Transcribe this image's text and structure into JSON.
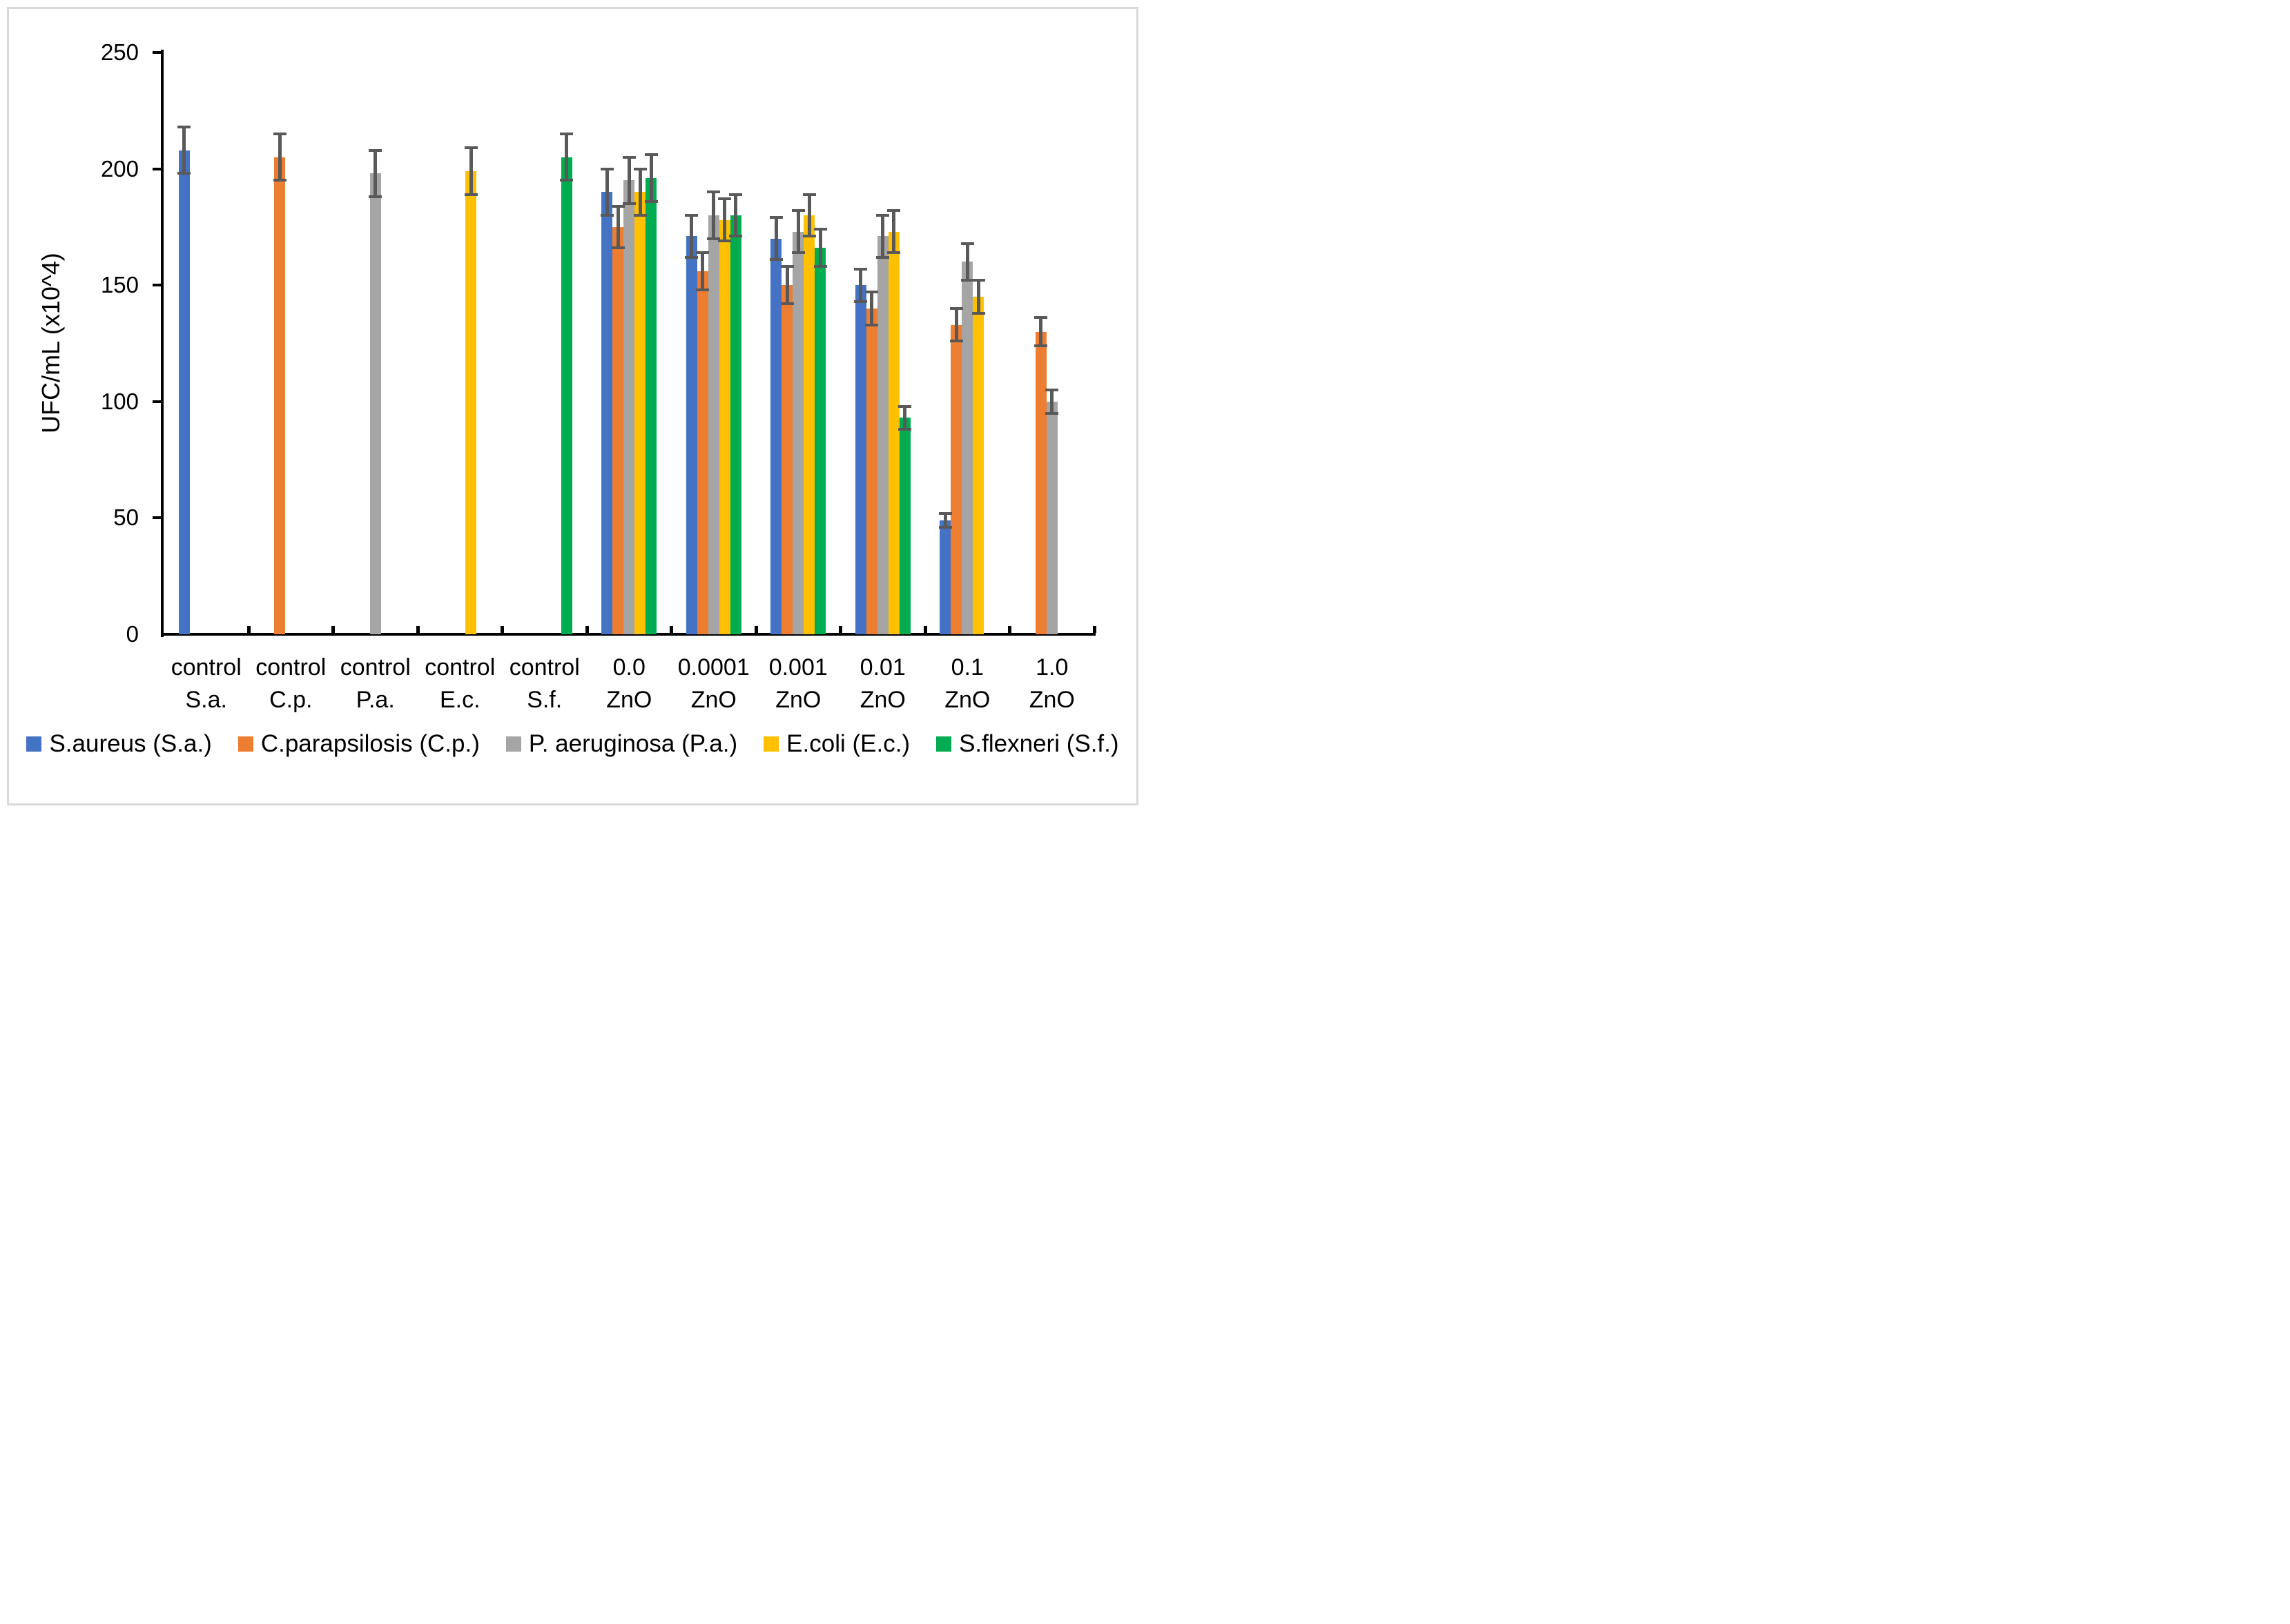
{
  "figure": {
    "background_color": "#FFFFFF",
    "border_color": "#D9D9D9"
  },
  "chart_data": {
    "type": "bar",
    "title": "",
    "y_axis_title": "UFC/mL (x10^4)",
    "ylim": [
      0,
      250
    ],
    "y_tick_step": 50,
    "y_tick_labels": [
      "0",
      "50",
      "100",
      "150",
      "200",
      "250"
    ],
    "grid": "off",
    "legend_position": "bottom",
    "axis_color": "#000000",
    "error_bar_color": "#595959",
    "categories": [
      {
        "label_lines": [
          "control",
          "S.a."
        ]
      },
      {
        "label_lines": [
          "control",
          "C.p."
        ]
      },
      {
        "label_lines": [
          "control",
          "P.a."
        ]
      },
      {
        "label_lines": [
          "control",
          "E.c."
        ]
      },
      {
        "label_lines": [
          "control",
          "S.f."
        ]
      },
      {
        "label_lines": [
          "0.0 ZnO"
        ]
      },
      {
        "label_lines": [
          "0.0001",
          "ZnO"
        ]
      },
      {
        "label_lines": [
          "0.001",
          "ZnO"
        ]
      },
      {
        "label_lines": [
          "0.01",
          "ZnO"
        ]
      },
      {
        "label_lines": [
          "0.1 ZnO"
        ]
      },
      {
        "label_lines": [
          "1.0 ZnO"
        ]
      }
    ],
    "series": [
      {
        "name": "S.aureus (S.a.)",
        "color": "#4472C4",
        "values": [
          208,
          null,
          null,
          null,
          null,
          190,
          171,
          170,
          150,
          49,
          null
        ],
        "errors": [
          10,
          null,
          null,
          null,
          null,
          10,
          9,
          9,
          7,
          3,
          null
        ]
      },
      {
        "name": "C.parapsilosis (C.p.)",
        "color": "#ED7D31",
        "values": [
          null,
          205,
          null,
          null,
          null,
          175,
          156,
          150,
          140,
          133,
          130
        ],
        "errors": [
          null,
          10,
          null,
          null,
          null,
          9,
          8,
          8,
          7,
          7,
          6
        ]
      },
      {
        "name": "P. aeruginosa (P.a.)",
        "color": "#A5A5A5",
        "values": [
          null,
          null,
          198,
          null,
          null,
          195,
          180,
          173,
          171,
          160,
          100
        ],
        "errors": [
          null,
          null,
          10,
          null,
          null,
          10,
          10,
          9,
          9,
          8,
          5
        ]
      },
      {
        "name": "E.coli (E.c.)",
        "color": "#FFC000",
        "values": [
          null,
          null,
          null,
          199,
          null,
          190,
          178,
          180,
          173,
          145,
          null
        ],
        "errors": [
          null,
          null,
          null,
          10,
          null,
          10,
          9,
          9,
          9,
          7,
          null
        ]
      },
      {
        "name": "S.flexneri (S.f.)",
        "color": "#00AC50",
        "values": [
          null,
          null,
          null,
          null,
          205,
          196,
          180,
          166,
          93,
          null,
          null
        ],
        "errors": [
          null,
          null,
          null,
          null,
          10,
          10,
          9,
          8,
          5,
          null,
          null
        ]
      }
    ]
  }
}
